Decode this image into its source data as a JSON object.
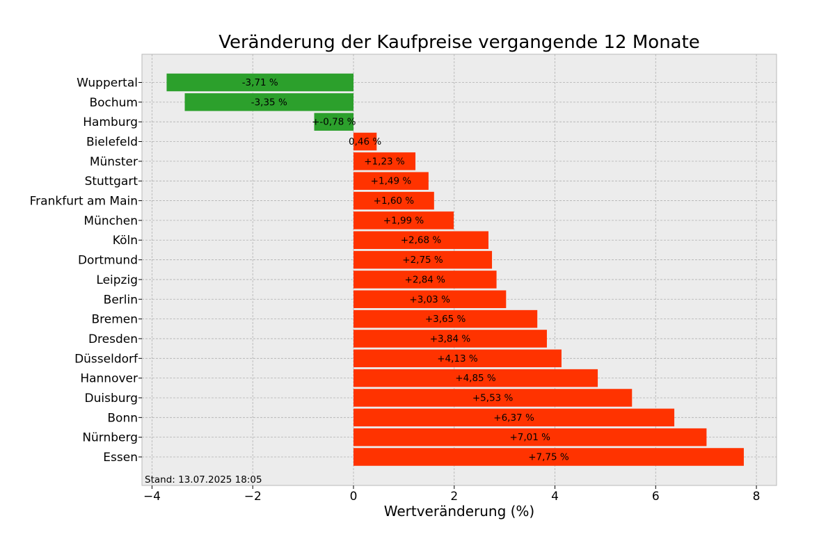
{
  "chart_data": {
    "type": "bar",
    "orientation": "horizontal",
    "title": "Veränderung der Kaufpreise vergangende 12 Monate",
    "xlabel": "Wertveränderung (%)",
    "ylabel": "",
    "xlim": [
      -4.2,
      8.4
    ],
    "xticks": [
      -4,
      -2,
      0,
      2,
      4,
      6,
      8
    ],
    "xtick_labels": [
      "−4",
      "−2",
      "0",
      "2",
      "4",
      "6",
      "8"
    ],
    "grid": true,
    "note": "Stand: 13.07.2025 18:05",
    "colors": {
      "positive": "#ff3300",
      "negative": "#2ca02c",
      "background": "#ececec"
    },
    "categories": [
      "Wuppertal",
      "Bochum",
      "Hamburg",
      "Bielefeld",
      "Münster",
      "Stuttgart",
      "Frankfurt am Main",
      "München",
      "Köln",
      "Dortmund",
      "Leipzig",
      "Berlin",
      "Bremen",
      "Dresden",
      "Düsseldorf",
      "Hannover",
      "Duisburg",
      "Bonn",
      "Nürnberg",
      "Essen"
    ],
    "values": [
      -3.71,
      -3.35,
      -0.78,
      0.46,
      1.23,
      1.49,
      1.6,
      1.99,
      2.68,
      2.75,
      2.84,
      3.03,
      3.65,
      3.84,
      4.13,
      4.85,
      5.53,
      6.37,
      7.01,
      7.75
    ],
    "data_labels": [
      "-3,71 %",
      "-3,35 %",
      "+-0,78 %",
      "0,46 %",
      "+1,23 %",
      "+1,49 %",
      "+1,60 %",
      "+1,99 %",
      "+2,68 %",
      "+2,75 %",
      "+2,84 %",
      "+3,03 %",
      "+3,65 %",
      "+3,84 %",
      "+4,13 %",
      "+4,85 %",
      "+5,53 %",
      "+6,37 %",
      "+7,01 %",
      "+7,75 %"
    ]
  }
}
